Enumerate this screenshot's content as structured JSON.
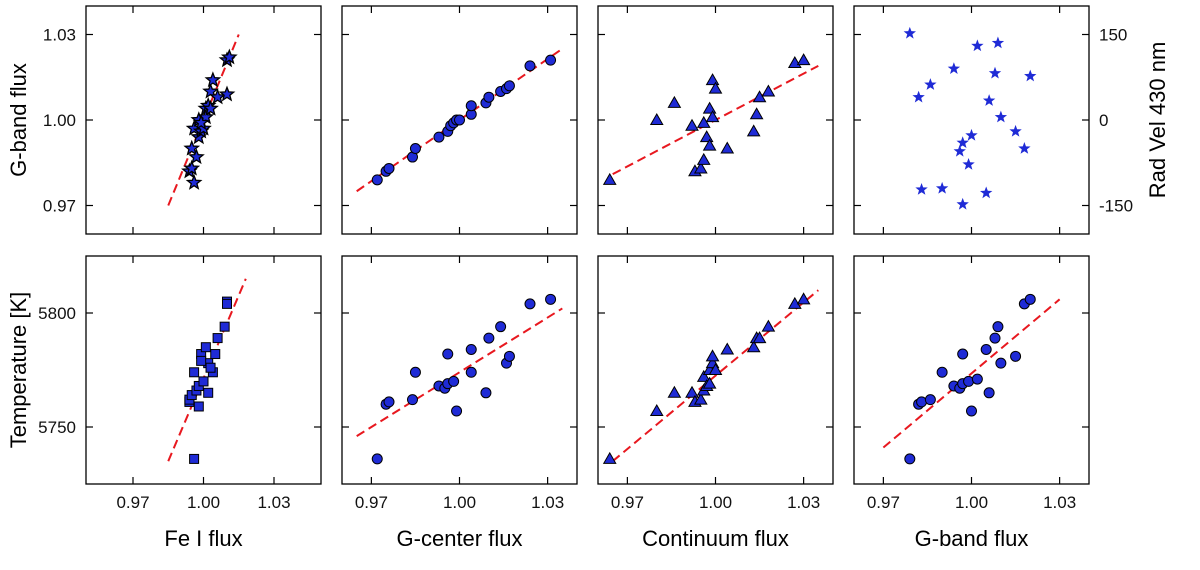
{
  "colors": {
    "marker_fill": "#1f2bd6",
    "marker_edge": "#000000",
    "fit_line": "#e8181f",
    "frame": "#000000"
  },
  "chart_data": [
    {
      "type": "scatter",
      "panel": "top-1",
      "marker": "star-filled",
      "xlim": [
        0.95,
        1.05
      ],
      "ylim": [
        0.96,
        1.04
      ],
      "xticks": [
        0.97,
        1.0,
        1.03
      ],
      "yticks": [
        0.97,
        1.0,
        1.03
      ],
      "xtick_labels": [],
      "ytick_labels": [
        "0.97",
        "1.00",
        "1.03"
      ],
      "ylabel": "G-band flux",
      "xlabel": "",
      "points": [
        [
          0.994,
          0.982
        ],
        [
          0.995,
          0.983
        ],
        [
          0.996,
          0.978
        ],
        [
          0.995,
          0.99
        ],
        [
          0.997,
          0.987
        ],
        [
          0.996,
          0.997
        ],
        [
          0.998,
          0.994
        ],
        [
          0.998,
          1.0
        ],
        [
          0.999,
          0.996
        ],
        [
          1.0,
          0.997
        ],
        [
          1.001,
          1.001
        ],
        [
          1.001,
          1.004
        ],
        [
          1.002,
          1.005
        ],
        [
          1.003,
          1.01
        ],
        [
          1.004,
          1.014
        ],
        [
          1.006,
          1.008
        ],
        [
          1.01,
          1.009
        ],
        [
          1.01,
          1.021
        ],
        [
          1.011,
          1.022
        ],
        [
          0.999,
          0.999
        ],
        [
          1.003,
          1.004
        ]
      ],
      "fit": [
        [
          0.985,
          0.97
        ],
        [
          1.015,
          1.03
        ]
      ]
    },
    {
      "type": "scatter",
      "panel": "top-2",
      "marker": "circle",
      "xlim": [
        0.96,
        1.04
      ],
      "ylim": [
        0.96,
        1.04
      ],
      "xticks": [
        0.97,
        1.0,
        1.03
      ],
      "yticks": [
        0.97,
        1.0,
        1.03
      ],
      "xtick_labels": [],
      "ytick_labels": [],
      "ylabel": "",
      "xlabel": "",
      "points": [
        [
          0.972,
          0.979
        ],
        [
          0.975,
          0.982
        ],
        [
          0.976,
          0.983
        ],
        [
          0.984,
          0.987
        ],
        [
          0.985,
          0.99
        ],
        [
          0.993,
          0.994
        ],
        [
          0.996,
          0.996
        ],
        [
          0.997,
          0.998
        ],
        [
          0.998,
          0.999
        ],
        [
          0.999,
          1.0
        ],
        [
          1.0,
          1.0
        ],
        [
          1.004,
          1.002
        ],
        [
          1.004,
          1.005
        ],
        [
          1.009,
          1.006
        ],
        [
          1.01,
          1.008
        ],
        [
          1.014,
          1.01
        ],
        [
          1.016,
          1.011
        ],
        [
          1.017,
          1.012
        ],
        [
          1.024,
          1.019
        ],
        [
          1.031,
          1.021
        ]
      ],
      "fit": [
        [
          0.965,
          0.975
        ],
        [
          1.035,
          1.025
        ]
      ]
    },
    {
      "type": "scatter",
      "panel": "top-3",
      "marker": "triangle",
      "xlim": [
        0.96,
        1.04
      ],
      "ylim": [
        0.96,
        1.04
      ],
      "xticks": [
        0.97,
        1.0,
        1.03
      ],
      "yticks": [
        0.97,
        1.0,
        1.03
      ],
      "xtick_labels": [],
      "ytick_labels": [],
      "ylabel": "",
      "xlabel": "",
      "points": [
        [
          0.964,
          0.979
        ],
        [
          0.98,
          1.0
        ],
        [
          0.986,
          1.006
        ],
        [
          0.992,
          0.998
        ],
        [
          0.993,
          0.982
        ],
        [
          0.995,
          0.983
        ],
        [
          0.996,
          0.986
        ],
        [
          0.996,
          0.999
        ],
        [
          0.997,
          0.994
        ],
        [
          0.998,
          0.991
        ],
        [
          0.998,
          1.004
        ],
        [
          0.999,
          1.001
        ],
        [
          0.999,
          1.014
        ],
        [
          1.0,
          1.011
        ],
        [
          1.004,
          0.99
        ],
        [
          1.013,
          0.996
        ],
        [
          1.014,
          1.002
        ],
        [
          1.015,
          1.008
        ],
        [
          1.018,
          1.01
        ],
        [
          1.027,
          1.02
        ],
        [
          1.03,
          1.021
        ]
      ],
      "fit": [
        [
          0.965,
          0.981
        ],
        [
          1.035,
          1.019
        ]
      ]
    },
    {
      "type": "scatter",
      "panel": "top-4",
      "marker": "star",
      "xlim": [
        0.96,
        1.04
      ],
      "ylim": [
        -200,
        200
      ],
      "xticks": [
        0.97,
        1.0,
        1.03
      ],
      "yticks": [
        -150,
        0,
        150
      ],
      "xtick_labels": [],
      "ytick_labels": [
        "-150",
        "0",
        "150"
      ],
      "ylabel": "Rad Vel 430 nm",
      "xlabel": "",
      "points": [
        [
          0.979,
          152
        ],
        [
          0.982,
          40
        ],
        [
          0.983,
          -122
        ],
        [
          0.986,
          62
        ],
        [
          0.99,
          -120
        ],
        [
          0.994,
          90
        ],
        [
          0.996,
          -55
        ],
        [
          0.997,
          -40
        ],
        [
          0.997,
          -148
        ],
        [
          0.999,
          -78
        ],
        [
          1.0,
          -27
        ],
        [
          1.002,
          130
        ],
        [
          1.005,
          -128
        ],
        [
          1.006,
          34
        ],
        [
          1.008,
          82
        ],
        [
          1.009,
          135
        ],
        [
          1.01,
          5
        ],
        [
          1.015,
          -20
        ],
        [
          1.018,
          -50
        ],
        [
          1.02,
          77
        ]
      ]
    },
    {
      "type": "scatter",
      "panel": "bottom-1",
      "marker": "square",
      "xlim": [
        0.95,
        1.05
      ],
      "ylim": [
        5725,
        5825
      ],
      "xticks": [
        0.97,
        1.0,
        1.03
      ],
      "yticks": [
        5750,
        5800
      ],
      "xtick_labels": [
        "0.97",
        "1.00",
        "1.03"
      ],
      "ytick_labels": [
        "5750",
        "5800"
      ],
      "ylabel": "Temperature [K]",
      "xlabel": "Fe I flux",
      "points": [
        [
          0.994,
          5761
        ],
        [
          0.994,
          5762
        ],
        [
          0.995,
          5764
        ],
        [
          0.996,
          5774
        ],
        [
          0.997,
          5766
        ],
        [
          0.996,
          5736
        ],
        [
          0.998,
          5768
        ],
        [
          0.998,
          5759
        ],
        [
          0.999,
          5782
        ],
        [
          1.0,
          5770
        ],
        [
          1.001,
          5785
        ],
        [
          1.002,
          5765
        ],
        [
          1.002,
          5778
        ],
        [
          1.004,
          5774
        ],
        [
          1.005,
          5782
        ],
        [
          1.006,
          5789
        ],
        [
          1.009,
          5794
        ],
        [
          1.01,
          5805
        ],
        [
          1.01,
          5804
        ],
        [
          0.999,
          5779
        ],
        [
          1.003,
          5776
        ]
      ],
      "fit": [
        [
          0.985,
          5735
        ],
        [
          1.018,
          5815
        ]
      ]
    },
    {
      "type": "scatter",
      "panel": "bottom-2",
      "marker": "circle",
      "xlim": [
        0.96,
        1.04
      ],
      "ylim": [
        5725,
        5825
      ],
      "xticks": [
        0.97,
        1.0,
        1.03
      ],
      "yticks": [
        5750,
        5800
      ],
      "xtick_labels": [
        "0.97",
        "1.00",
        "1.03"
      ],
      "ytick_labels": [],
      "ylabel": "",
      "xlabel": "G-center flux",
      "points": [
        [
          0.972,
          5736
        ],
        [
          0.975,
          5760
        ],
        [
          0.976,
          5761
        ],
        [
          0.984,
          5762
        ],
        [
          0.985,
          5774
        ],
        [
          0.993,
          5768
        ],
        [
          0.995,
          5767
        ],
        [
          0.996,
          5769
        ],
        [
          0.996,
          5782
        ],
        [
          0.998,
          5770
        ],
        [
          0.999,
          5757
        ],
        [
          1.004,
          5784
        ],
        [
          1.004,
          5774
        ],
        [
          1.01,
          5789
        ],
        [
          1.009,
          5765
        ],
        [
          1.014,
          5794
        ],
        [
          1.016,
          5778
        ],
        [
          1.017,
          5781
        ],
        [
          1.024,
          5804
        ],
        [
          1.031,
          5806
        ]
      ],
      "fit": [
        [
          0.965,
          5746
        ],
        [
          1.035,
          5802
        ]
      ]
    },
    {
      "type": "scatter",
      "panel": "bottom-3",
      "marker": "triangle",
      "xlim": [
        0.96,
        1.04
      ],
      "ylim": [
        5725,
        5825
      ],
      "xticks": [
        0.97,
        1.0,
        1.03
      ],
      "yticks": [
        5750,
        5800
      ],
      "xtick_labels": [
        "0.97",
        "1.00",
        "1.03"
      ],
      "ytick_labels": [],
      "ylabel": "",
      "xlabel": "Continuum flux",
      "points": [
        [
          0.964,
          5736
        ],
        [
          0.98,
          5757
        ],
        [
          0.986,
          5765
        ],
        [
          0.992,
          5765
        ],
        [
          0.993,
          5761
        ],
        [
          0.995,
          5762
        ],
        [
          0.996,
          5766
        ],
        [
          0.996,
          5772
        ],
        [
          0.997,
          5768
        ],
        [
          0.998,
          5769
        ],
        [
          0.998,
          5775
        ],
        [
          0.999,
          5778
        ],
        [
          0.999,
          5781
        ],
        [
          1.0,
          5775
        ],
        [
          1.004,
          5784
        ],
        [
          1.013,
          5785
        ],
        [
          1.014,
          5789
        ],
        [
          1.015,
          5789
        ],
        [
          1.018,
          5794
        ],
        [
          1.027,
          5804
        ],
        [
          1.03,
          5806
        ]
      ],
      "fit": [
        [
          0.965,
          5735
        ],
        [
          1.035,
          5810
        ]
      ]
    },
    {
      "type": "scatter",
      "panel": "bottom-4",
      "marker": "circle",
      "xlim": [
        0.96,
        1.04
      ],
      "ylim": [
        5725,
        5825
      ],
      "xticks": [
        0.97,
        1.0,
        1.03
      ],
      "yticks": [
        5750,
        5800
      ],
      "xtick_labels": [
        "0.97",
        "1.00",
        "1.03"
      ],
      "ytick_labels": [],
      "ylabel": "",
      "xlabel": "G-band flux",
      "points": [
        [
          0.979,
          5736
        ],
        [
          0.982,
          5760
        ],
        [
          0.983,
          5761
        ],
        [
          0.986,
          5762
        ],
        [
          0.99,
          5774
        ],
        [
          0.994,
          5768
        ],
        [
          0.996,
          5767
        ],
        [
          0.997,
          5769
        ],
        [
          0.997,
          5782
        ],
        [
          0.999,
          5770
        ],
        [
          1.0,
          5757
        ],
        [
          1.002,
          5771
        ],
        [
          1.005,
          5784
        ],
        [
          1.006,
          5765
        ],
        [
          1.008,
          5789
        ],
        [
          1.009,
          5794
        ],
        [
          1.01,
          5778
        ],
        [
          1.015,
          5781
        ],
        [
          1.018,
          5804
        ],
        [
          1.02,
          5806
        ]
      ],
      "fit": [
        [
          0.97,
          5741
        ],
        [
          1.03,
          5806
        ]
      ]
    }
  ]
}
